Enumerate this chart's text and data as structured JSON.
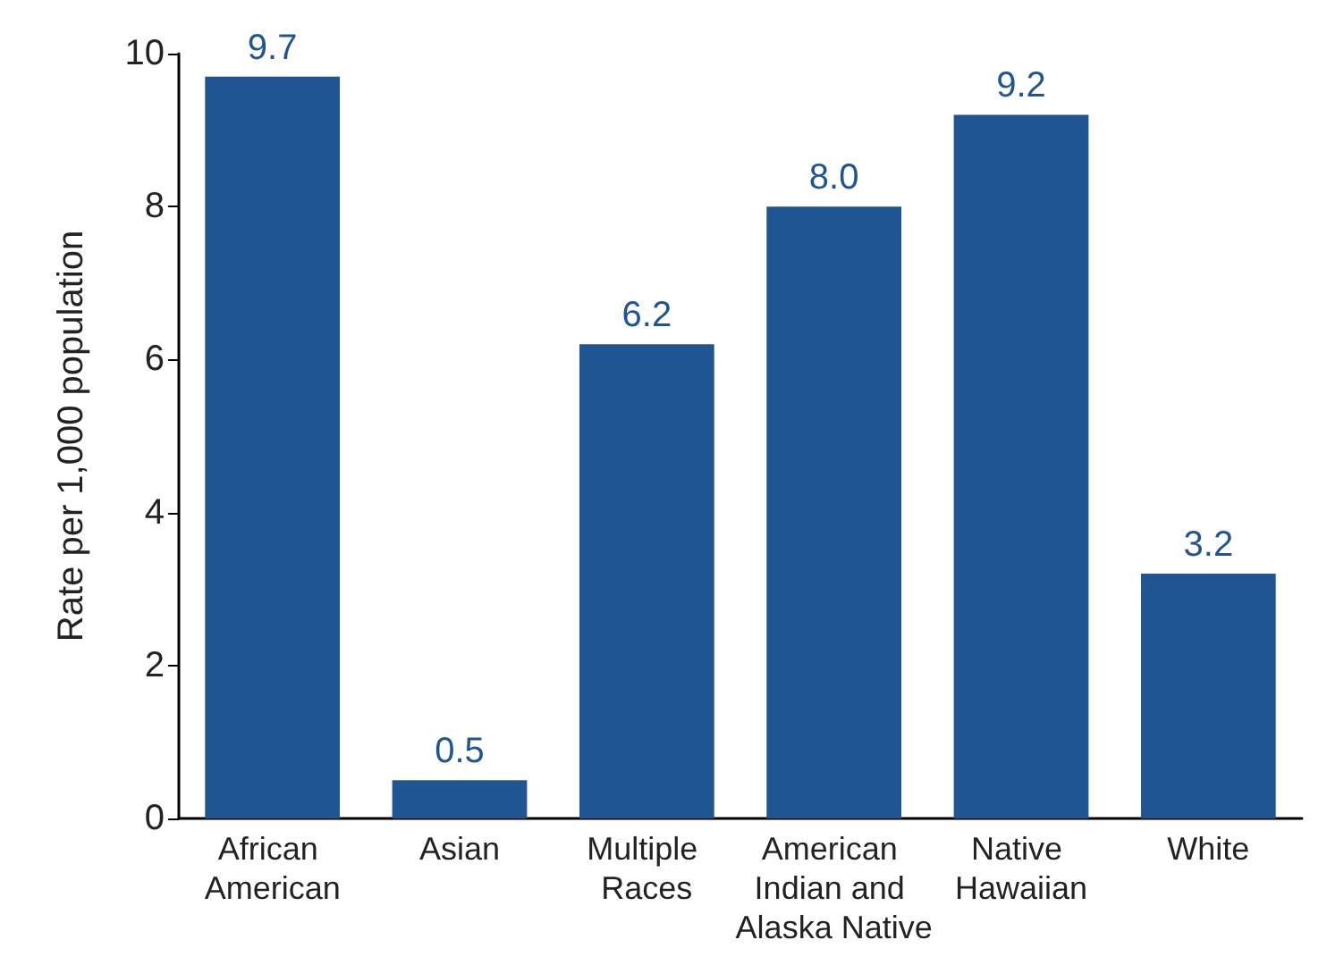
{
  "chart_data": {
    "type": "bar",
    "ylabel": "Rate per 1,000 population",
    "categories": [
      "African American",
      "Asian",
      "Multiple Races",
      "American Indian and Alaska Native",
      "Native Hawaiian",
      "White"
    ],
    "values": [
      9.7,
      0.5,
      6.2,
      8.0,
      9.2,
      3.2
    ],
    "value_labels": [
      "9.7",
      "0.5",
      "6.2",
      "8.0",
      "9.2",
      "3.2"
    ],
    "color": "#1f5592",
    "ylim": [
      0,
      10
    ],
    "yticks": [
      0,
      2,
      4,
      6,
      8,
      10
    ],
    "grid": false
  }
}
